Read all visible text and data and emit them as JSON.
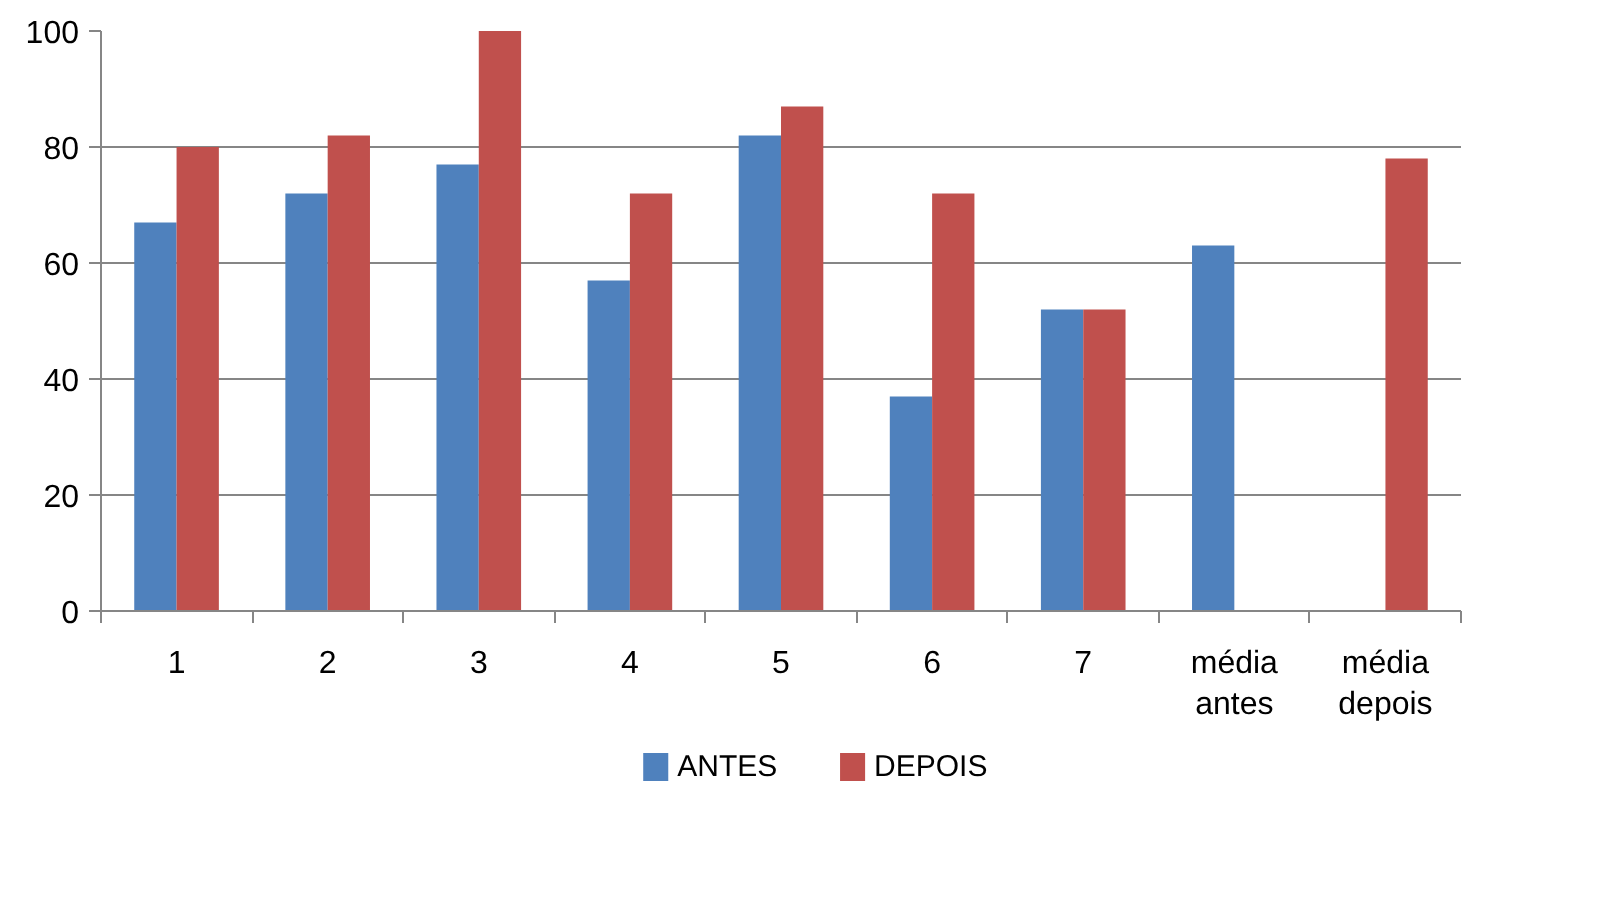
{
  "chart_data": {
    "type": "bar",
    "categories": [
      "1",
      "2",
      "3",
      "4",
      "5",
      "6",
      "7",
      "média antes",
      "média depois"
    ],
    "series": [
      {
        "name": "ANTES",
        "color": "#4f81bd",
        "values": [
          67,
          72,
          77,
          57,
          82,
          37,
          52,
          63,
          null
        ]
      },
      {
        "name": "DEPOIS",
        "color": "#c0504d",
        "values": [
          80,
          82,
          100,
          72,
          87,
          72,
          52,
          null,
          78
        ]
      }
    ],
    "ylim": [
      0,
      100
    ],
    "yticks": [
      0,
      20,
      40,
      60,
      80,
      100
    ],
    "grid": "y",
    "legend": "bottom"
  }
}
